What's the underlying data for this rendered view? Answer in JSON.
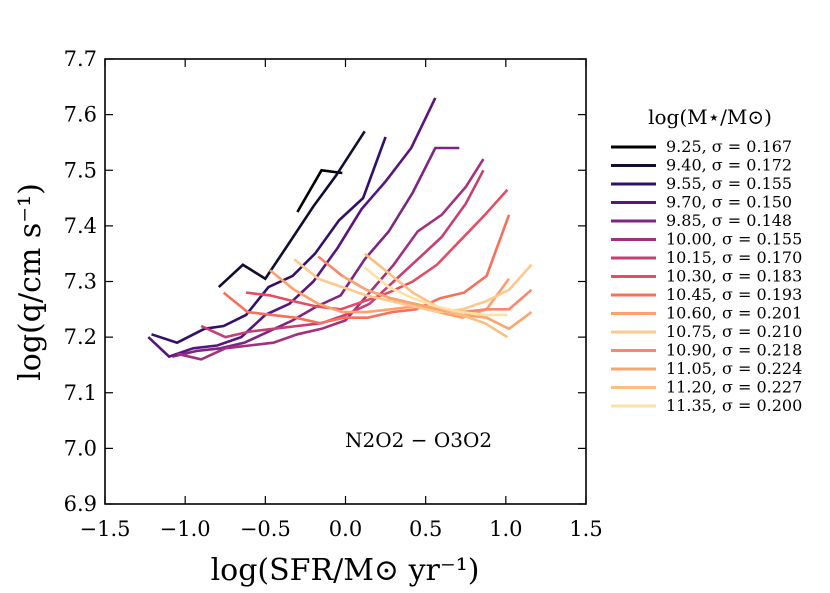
{
  "chart_data": {
    "type": "line",
    "title": "",
    "xlabel": "log(SFR/M⊙ yr⁻¹)",
    "ylabel": "log(q/cm s⁻¹)",
    "xlim": [
      -1.5,
      1.5
    ],
    "ylim": [
      6.9,
      7.7
    ],
    "xticks": [
      "−1.5",
      "−1.0",
      "−0.5",
      "0.0",
      "0.5",
      "1.0",
      "1.5"
    ],
    "yticks": [
      "6.9",
      "7.0",
      "7.1",
      "7.2",
      "7.3",
      "7.4",
      "7.5",
      "7.6",
      "7.7"
    ],
    "xtick_values": [
      -1.5,
      -1.0,
      -0.5,
      0.0,
      0.5,
      1.0,
      1.5
    ],
    "ytick_values": [
      6.9,
      7.0,
      7.1,
      7.2,
      7.3,
      7.4,
      7.5,
      7.6,
      7.7
    ],
    "annotation": "N2O2 − O3O2",
    "legend_title": "log(M⋆/M⊙)",
    "legend_position": "right, outside plot",
    "series": [
      {
        "name": "9.25,  σ = 0.167",
        "color": "#000004",
        "x": [
          -0.3,
          -0.15,
          -0.02
        ],
        "y": [
          7.425,
          7.5,
          7.495
        ]
      },
      {
        "name": "9.40,  σ = 0.172",
        "color": "#120d31",
        "x": [
          -0.79,
          -0.64,
          -0.5,
          -0.35,
          -0.2,
          -0.06,
          0.12
        ],
        "y": [
          7.29,
          7.33,
          7.305,
          7.37,
          7.435,
          7.49,
          7.57
        ]
      },
      {
        "name": "9.55,  σ = 0.155",
        "color": "#331067",
        "x": [
          -1.21,
          -1.05,
          -0.88,
          -0.76,
          -0.62,
          -0.48,
          -0.33,
          -0.19,
          -0.04,
          0.11,
          0.25
        ],
        "y": [
          7.205,
          7.19,
          7.215,
          7.22,
          7.24,
          7.29,
          7.31,
          7.35,
          7.41,
          7.45,
          7.56
        ]
      },
      {
        "name": "9.70,  σ = 0.150",
        "color": "#59157e",
        "x": [
          -1.23,
          -1.1,
          -0.95,
          -0.8,
          -0.65,
          -0.5,
          -0.35,
          -0.2,
          -0.05,
          0.1,
          0.25,
          0.41,
          0.56
        ],
        "y": [
          7.2,
          7.165,
          7.18,
          7.185,
          7.2,
          7.24,
          7.26,
          7.3,
          7.36,
          7.43,
          7.48,
          7.54,
          7.63
        ]
      },
      {
        "name": "9.85,  σ = 0.148",
        "color": "#7e2482",
        "x": [
          -1.08,
          -0.93,
          -0.78,
          -0.63,
          -0.48,
          -0.33,
          -0.18,
          -0.03,
          0.12,
          0.27,
          0.42,
          0.56,
          0.71
        ],
        "y": [
          7.165,
          7.175,
          7.18,
          7.19,
          7.21,
          7.23,
          7.255,
          7.275,
          7.34,
          7.39,
          7.46,
          7.54,
          7.54
        ]
      },
      {
        "name": "10.00, σ = 0.155",
        "color": "#a3307e",
        "x": [
          -1.05,
          -0.9,
          -0.75,
          -0.6,
          -0.45,
          -0.3,
          -0.15,
          0.0,
          0.15,
          0.3,
          0.45,
          0.6,
          0.75,
          0.86
        ],
        "y": [
          7.17,
          7.16,
          7.18,
          7.185,
          7.19,
          7.205,
          7.215,
          7.23,
          7.28,
          7.33,
          7.39,
          7.42,
          7.47,
          7.52
        ]
      },
      {
        "name": "10.15, σ = 0.170",
        "color": "#c83e73",
        "x": [
          -0.9,
          -0.75,
          -0.6,
          -0.45,
          -0.3,
          -0.15,
          0.0,
          0.15,
          0.3,
          0.45,
          0.6,
          0.75,
          0.86
        ],
        "y": [
          7.22,
          7.2,
          7.21,
          7.215,
          7.22,
          7.225,
          7.24,
          7.26,
          7.3,
          7.34,
          7.38,
          7.44,
          7.5
        ]
      },
      {
        "name": "10.30, σ = 0.183",
        "color": "#e34e65",
        "x": [
          -0.62,
          -0.47,
          -0.33,
          -0.18,
          -0.03,
          0.12,
          0.27,
          0.42,
          0.57,
          0.72,
          0.87,
          1.01
        ],
        "y": [
          7.28,
          7.275,
          7.265,
          7.255,
          7.25,
          7.265,
          7.28,
          7.3,
          7.33,
          7.375,
          7.42,
          7.465
        ]
      },
      {
        "name": "10.45, σ = 0.193",
        "color": "#f6705c",
        "x": [
          -0.76,
          -0.61,
          -0.46,
          -0.31,
          -0.16,
          -0.01,
          0.14,
          0.29,
          0.44,
          0.59,
          0.74,
          0.88,
          1.02
        ],
        "y": [
          7.28,
          7.245,
          7.24,
          7.235,
          7.225,
          7.235,
          7.235,
          7.245,
          7.25,
          7.27,
          7.28,
          7.31,
          7.42
        ]
      },
      {
        "name": "10.60, σ = 0.201",
        "color": "#fe9f6d",
        "x": [
          -0.47,
          -0.32,
          -0.17,
          -0.02,
          0.13,
          0.28,
          0.43,
          0.58,
          0.73,
          0.88,
          1.02
        ],
        "y": [
          7.32,
          7.285,
          7.26,
          7.245,
          7.245,
          7.25,
          7.255,
          7.245,
          7.235,
          7.25,
          7.305
        ]
      },
      {
        "name": "10.75, σ = 0.210",
        "color": "#fec98d",
        "x": [
          -0.32,
          -0.17,
          -0.02,
          0.13,
          0.28,
          0.43,
          0.58,
          0.73,
          0.88,
          1.02,
          1.16
        ],
        "y": [
          7.34,
          7.305,
          7.29,
          7.275,
          7.265,
          7.255,
          7.245,
          7.25,
          7.265,
          7.285,
          7.33
        ]
      },
      {
        "name": "10.90, σ = 0.218",
        "color": "#fb876a",
        "x": [
          -0.17,
          -0.02,
          0.13,
          0.28,
          0.43,
          0.58,
          0.73,
          0.88,
          1.02,
          1.16
        ],
        "y": [
          7.345,
          7.31,
          7.285,
          7.27,
          7.26,
          7.25,
          7.245,
          7.25,
          7.25,
          7.285
        ]
      },
      {
        "name": "11.05, σ = 0.224",
        "color": "#f9a570",
        "x": [
          -0.02,
          0.13,
          0.28,
          0.43,
          0.58,
          0.73,
          0.88,
          1.02,
          1.16
        ],
        "y": [
          7.31,
          7.285,
          7.27,
          7.26,
          7.25,
          7.24,
          7.235,
          7.215,
          7.245
        ]
      },
      {
        "name": "11.20, σ = 0.227",
        "color": "#fdbf80",
        "x": [
          0.12,
          0.27,
          0.42,
          0.57,
          0.72,
          0.87,
          1.01
        ],
        "y": [
          7.35,
          7.315,
          7.28,
          7.255,
          7.24,
          7.225,
          7.2
        ]
      },
      {
        "name": "11.35, σ = 0.200",
        "color": "#fde1a4",
        "x": [
          0.12,
          0.27,
          0.42,
          0.57,
          0.72,
          0.87,
          1.01
        ],
        "y": [
          7.325,
          7.29,
          7.27,
          7.255,
          7.245,
          7.24,
          7.24
        ]
      }
    ]
  }
}
